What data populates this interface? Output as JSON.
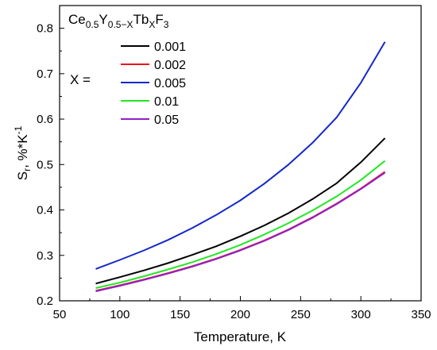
{
  "chart_data": {
    "type": "line",
    "title": "",
    "xlabel": "Temperature, K",
    "ylabel": {
      "base": "S",
      "sub": "r",
      "rest": ", %*K",
      "sup": "-1"
    },
    "xlim": [
      50,
      350
    ],
    "ylim": [
      0.2,
      0.85
    ],
    "xticks": [
      50,
      100,
      150,
      200,
      250,
      300,
      350
    ],
    "yticks": [
      0.2,
      0.3,
      0.4,
      0.5,
      0.6,
      0.7,
      0.8
    ],
    "grid": false,
    "legend": {
      "placement": "top-left",
      "title": [
        {
          "t": "Ce",
          "pos": "base"
        },
        {
          "t": "0.5",
          "pos": "sub"
        },
        {
          "t": "Y",
          "pos": "base"
        },
        {
          "t": "0.5−X",
          "pos": "sub"
        },
        {
          "t": "Tb",
          "pos": "base"
        },
        {
          "t": "X",
          "pos": "sub"
        },
        {
          "t": "F",
          "pos": "base"
        },
        {
          "t": "3",
          "pos": "sub"
        }
      ],
      "variable_label": "X ="
    },
    "x": [
      80,
      100,
      120,
      140,
      160,
      180,
      200,
      220,
      240,
      260,
      280,
      300,
      320
    ],
    "series": [
      {
        "name": "0.001",
        "color": "#000000",
        "values": [
          0.238,
          0.252,
          0.267,
          0.283,
          0.301,
          0.32,
          0.342,
          0.366,
          0.393,
          0.424,
          0.459,
          0.505,
          0.558
        ]
      },
      {
        "name": "0.002",
        "color": "#e8141c",
        "values": [
          0.222,
          0.234,
          0.247,
          0.261,
          0.276,
          0.293,
          0.312,
          0.333,
          0.357,
          0.384,
          0.414,
          0.447,
          0.484
        ]
      },
      {
        "name": "0.005",
        "color": "#1428c8",
        "values": [
          0.27,
          0.29,
          0.311,
          0.334,
          0.36,
          0.389,
          0.421,
          0.458,
          0.5,
          0.548,
          0.604,
          0.68,
          0.77
        ]
      },
      {
        "name": "0.01",
        "color": "#22e822",
        "values": [
          0.228,
          0.24,
          0.254,
          0.269,
          0.285,
          0.303,
          0.323,
          0.346,
          0.371,
          0.399,
          0.43,
          0.466,
          0.508
        ]
      },
      {
        "name": "0.05",
        "color": "#9120c8",
        "values": [
          0.221,
          0.233,
          0.246,
          0.26,
          0.275,
          0.292,
          0.311,
          0.332,
          0.356,
          0.383,
          0.413,
          0.446,
          0.482
        ]
      }
    ]
  }
}
